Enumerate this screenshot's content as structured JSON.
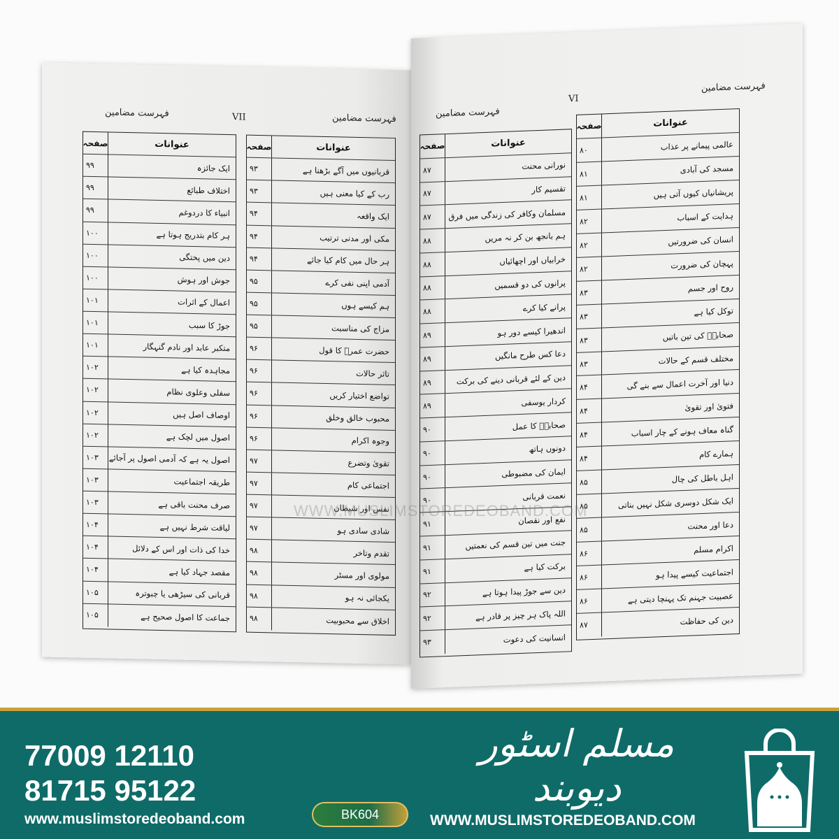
{
  "left_page": {
    "header_right": "فہرست مضامین",
    "page_number": "VII",
    "header_left": "فہرست مضامین",
    "col_title": "عنوانات",
    "col_page": "صفحہ",
    "table_a": [
      [
        "ایک جائزہ",
        "۹۹"
      ],
      [
        "اختلاف طبائع",
        "۹۹"
      ],
      [
        "انبیاء کا دردوغم",
        "۹۹"
      ],
      [
        "ہر کام بتدریج ہوتا ہے",
        "۱۰۰"
      ],
      [
        "دین میں پختگی",
        "۱۰۰"
      ],
      [
        "جوش اور ہوش",
        "۱۰۰"
      ],
      [
        "اعمال کے اثرات",
        "۱۰۱"
      ],
      [
        "جوڑ کا سبب",
        "۱۰۱"
      ],
      [
        "متکبر عابد اور نادم گنہگار",
        "۱۰۱"
      ],
      [
        "مجاہدہ کیا ہے",
        "۱۰۲"
      ],
      [
        "سفلی وعلوی نظام",
        "۱۰۲"
      ],
      [
        "اوصاف اصل ہیں",
        "۱۰۲"
      ],
      [
        "اصول میں لچک ہے",
        "۱۰۲"
      ],
      [
        "اصول یہ ہے کہ آدمی اصول پر آجائے",
        "۱۰۳"
      ],
      [
        "طریقہ اجتماعیت",
        "۱۰۳"
      ],
      [
        "صرف محنت باقی ہے",
        "۱۰۳"
      ],
      [
        "لیاقت شرط نہیں ہے",
        "۱۰۴"
      ],
      [
        "خدا کی ذات اور اس کے دلائل",
        "۱۰۴"
      ],
      [
        "مقصد جہاد کیا ہے",
        "۱۰۴"
      ],
      [
        "قربانی کی سیڑھی یا چبوترہ",
        "۱۰۵"
      ],
      [
        "جماعت کا اصول صحیح ہے",
        "۱۰۵"
      ]
    ],
    "table_b": [
      [
        "قربانیوں میں آگے بڑھنا ہے",
        "۹۳"
      ],
      [
        "رب کے کیا معنی ہیں",
        "۹۳"
      ],
      [
        "ایک واقعہ",
        "۹۴"
      ],
      [
        "مکی اور مدنی ترتیب",
        "۹۴"
      ],
      [
        "ہر حال میں کام کیا جائے",
        "۹۴"
      ],
      [
        "آدمی اپنی نفی کرے",
        "۹۵"
      ],
      [
        "ہم کیسے ہوں",
        "۹۵"
      ],
      [
        "مزاج کی مناسبت",
        "۹۵"
      ],
      [
        "حضرت عمرؓ کا قول",
        "۹۶"
      ],
      [
        "تاثر حالات",
        "۹۶"
      ],
      [
        "تواضع اختیار کریں",
        "۹۶"
      ],
      [
        "محبوب خالق وخلق",
        "۹۶"
      ],
      [
        "وجوہ اکرام",
        "۹۶"
      ],
      [
        "تقویٰ وتضرع",
        "۹۷"
      ],
      [
        "اجتماعی کام",
        "۹۷"
      ],
      [
        "نفس اور شیطان",
        "۹۷"
      ],
      [
        "شادی سادی ہو",
        "۹۷"
      ],
      [
        "تقدم وتاخر",
        "۹۸"
      ],
      [
        "مولوی اور مسٹر",
        "۹۸"
      ],
      [
        "یکجائی نہ ہو",
        "۹۸"
      ],
      [
        "اخلاق سے محبوبیت",
        "۹۸"
      ]
    ]
  },
  "right_page": {
    "header_right": "فہرست مضامین",
    "page_number": "VI",
    "header_left": "فہرست مضامین",
    "col_title": "عنوانات",
    "col_page": "صفحہ",
    "table_c": [
      [
        "نورانی محنت",
        "۸۷"
      ],
      [
        "تقسیم کار",
        "۸۷"
      ],
      [
        "مسلمان وکافر کی زندگی میں فرق",
        "۸۷"
      ],
      [
        "ہم بانجھ بن کر نہ مریں",
        "۸۸"
      ],
      [
        "خرابیاں اور اچھائیاں",
        "۸۸"
      ],
      [
        "پرانوں کی دو قسمیں",
        "۸۸"
      ],
      [
        "پرانے کیا کرے",
        "۸۸"
      ],
      [
        "اندھیرا کیسے دور ہو",
        "۸۹"
      ],
      [
        "دعا کس طرح مانگیں",
        "۸۹"
      ],
      [
        "دین کے لئے قربانی دینے کی برکت",
        "۸۹"
      ],
      [
        "کردار یوسفی",
        "۸۹"
      ],
      [
        "صحابہؓ کا عمل",
        "۹۰"
      ],
      [
        "دونوں ہاتھ",
        "۹۰"
      ],
      [
        "ایمان کی مضبوطی",
        "۹۰"
      ],
      [
        "نعمت قربانی",
        "۹۰"
      ],
      [
        "نفع اور نقصان",
        "۹۱"
      ],
      [
        "جنت میں تین قسم کی نعمتیں",
        "۹۱"
      ],
      [
        "برکت کیا ہے",
        "۹۱"
      ],
      [
        "دین سے جوڑ پیدا ہوتا ہے",
        "۹۲"
      ],
      [
        "اللہ پاک ہر چیز پر قادر ہے",
        "۹۲"
      ],
      [
        "انسانیت کی دعوت",
        "۹۳"
      ]
    ],
    "table_d": [
      [
        "عالمی پیمانے پر عذاب",
        "۸۰"
      ],
      [
        "مسجد کی آبادی",
        "۸۱"
      ],
      [
        "پریشانیاں کیوں آتی ہیں",
        "۸۱"
      ],
      [
        "ہدایت کے اسباب",
        "۸۲"
      ],
      [
        "انسان کی ضرورتیں",
        "۸۲"
      ],
      [
        "پہچان کی ضرورت",
        "۸۲"
      ],
      [
        "روح اور جسم",
        "۸۳"
      ],
      [
        "توکل کیا ہے",
        "۸۳"
      ],
      [
        "صحابہؓ کی تین باتیں",
        "۸۳"
      ],
      [
        "مختلف قسم کے حالات",
        "۸۳"
      ],
      [
        "دنیا اور آخرت اعمال سے بنے گی",
        "۸۴"
      ],
      [
        "فتویٰ اور تقویٰ",
        "۸۴"
      ],
      [
        "گناہ معاف ہونے کے چار اسباب",
        "۸۴"
      ],
      [
        "ہمارے کام",
        "۸۴"
      ],
      [
        "اہل باطل کی چال",
        "۸۵"
      ],
      [
        "ایک شکل دوسری شکل نہیں بناتی",
        "۸۵"
      ],
      [
        "دعا اور محنت",
        "۸۵"
      ],
      [
        "اکرام مسلم",
        "۸۶"
      ],
      [
        "اجتماعیت کیسے پیدا ہو",
        "۸۶"
      ],
      [
        "عصبیت جہنم تک پہنچا دیتی ہے",
        "۸۶"
      ],
      [
        "دین کی حفاظت",
        "۸۷"
      ]
    ]
  },
  "watermark": "WWW.MUSLIMSTOREDEOBAND.COM",
  "banner": {
    "phone_1": "77009 12110",
    "phone_2": "81715 95122",
    "url_lower": "www.muslimstoredeoband.com",
    "product_code": "BK604",
    "logo_text": "مسلم اسٹور دیوبند",
    "url_upper": "WWW.MUSLIMSTOREDEOBAND.COM",
    "icon": "shopping-bag-mosque-icon",
    "colors": {
      "background": "#0f6b68",
      "accent": "#c9a23a"
    }
  }
}
